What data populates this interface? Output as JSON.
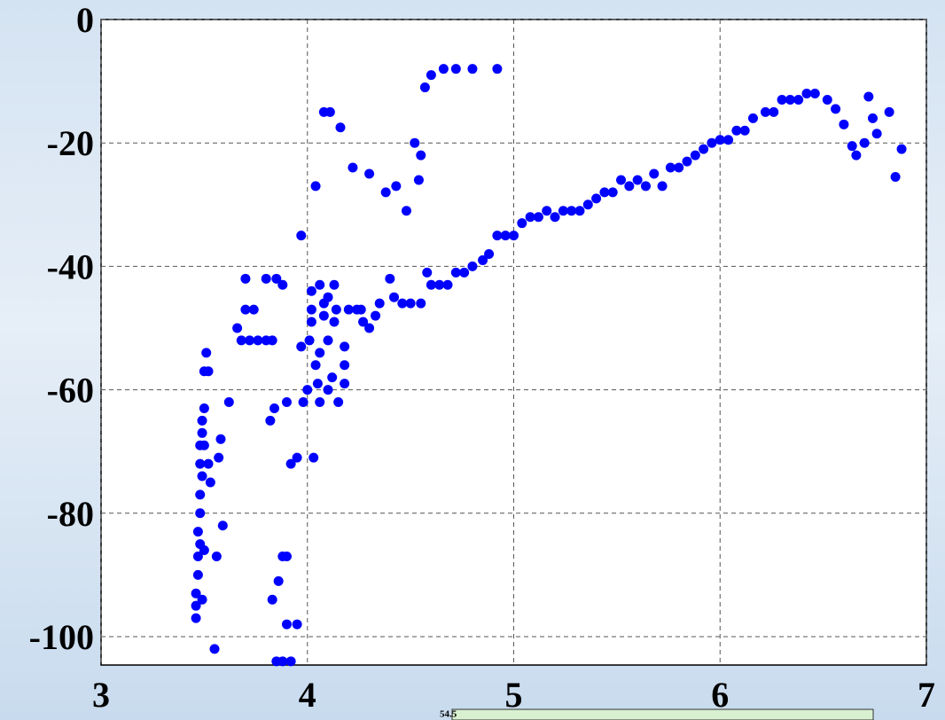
{
  "chart_data": {
    "type": "scatter",
    "color": "#0000ff",
    "grid": true,
    "xlim": [
      3,
      7
    ],
    "xticks": [
      3,
      4,
      5,
      6,
      7
    ],
    "ylim": [
      -104.6,
      0
    ],
    "yticks": [
      0,
      -20,
      -40,
      -60,
      -80,
      -100
    ],
    "annotation": "54.5",
    "x": [
      3.46,
      3.46,
      3.46,
      3.47,
      3.47,
      3.48,
      3.47,
      3.48,
      3.48,
      3.49,
      3.48,
      3.48,
      3.49,
      3.49,
      3.5,
      3.5,
      3.51,
      3.52,
      3.5,
      3.52,
      3.53,
      3.5,
      3.49,
      3.55,
      3.56,
      3.57,
      3.58,
      3.59,
      3.62,
      3.66,
      3.68,
      3.7,
      3.7,
      3.74,
      3.72,
      3.76,
      3.8,
      3.83,
      3.8,
      3.85,
      3.88,
      3.82,
      3.84,
      3.83,
      3.86,
      3.88,
      3.9,
      3.9,
      3.92,
      3.95,
      3.95,
      3.85,
      3.88,
      3.92,
      3.9,
      3.97,
      3.97,
      3.98,
      4.0,
      4.01,
      4.02,
      4.02,
      4.02,
      4.03,
      4.04,
      4.04,
      4.05,
      4.06,
      4.06,
      4.06,
      4.08,
      4.08,
      4.1,
      4.1,
      4.1,
      4.08,
      4.11,
      4.12,
      4.13,
      4.13,
      4.14,
      4.15,
      4.16,
      4.18,
      4.18,
      4.18,
      4.2,
      4.22,
      4.24,
      4.26,
      4.27,
      4.3,
      4.3,
      4.33,
      4.35,
      4.38,
      4.4,
      4.42,
      4.43,
      4.46,
      4.48,
      4.5,
      4.52,
      4.54,
      4.55,
      4.55,
      4.57,
      4.58,
      4.6,
      4.6,
      4.64,
      4.66,
      4.68,
      4.72,
      4.72,
      4.76,
      4.8,
      4.8,
      4.85,
      4.88,
      4.92,
      4.92,
      4.96,
      5.0,
      5.04,
      5.08,
      5.12,
      5.16,
      5.2,
      5.24,
      5.28,
      5.32,
      5.36,
      5.4,
      5.44,
      5.48,
      5.52,
      5.56,
      5.6,
      5.64,
      5.68,
      5.72,
      5.76,
      5.8,
      5.84,
      5.88,
      5.92,
      5.96,
      6.0,
      6.04,
      6.08,
      6.12,
      6.16,
      6.22,
      6.26,
      6.3,
      6.34,
      6.38,
      6.42,
      6.46,
      6.52,
      6.56,
      6.6,
      6.64,
      6.66,
      6.7,
      6.72,
      6.74,
      6.76,
      6.82,
      6.85,
      6.88
    ],
    "y": [
      -97,
      -95,
      -93,
      -90,
      -87,
      -85,
      -83,
      -80,
      -77,
      -74,
      -72,
      -69,
      -67,
      -65,
      -63,
      -57,
      -54,
      -57,
      -69,
      -72,
      -75,
      -86,
      -94,
      -102,
      -87,
      -71,
      -68,
      -82,
      -62,
      -50,
      -52,
      -47,
      -42,
      -47,
      -52,
      -52,
      -52,
      -52,
      -42,
      -42,
      -43,
      -65,
      -63,
      -94,
      -91,
      -87,
      -87,
      -98,
      -72,
      -71,
      -98,
      -104,
      -104,
      -104,
      -62,
      -35,
      -53,
      -62,
      -60,
      -52,
      -49,
      -47,
      -44,
      -71,
      -27,
      -56,
      -59,
      -54,
      -62,
      -43,
      -46,
      -48,
      -45,
      -52,
      -60,
      -15,
      -15,
      -58,
      -43,
      -49,
      -47,
      -62,
      -17.5,
      -59,
      -56,
      -53,
      -47,
      -24,
      -47,
      -47,
      -49,
      -25,
      -50,
      -48,
      -46,
      -28,
      -42,
      -45,
      -27,
      -46,
      -31,
      -46,
      -20,
      -26,
      -22,
      -46,
      -11,
      -41,
      -9,
      -43,
      -43,
      -8,
      -43,
      -8,
      -41,
      -41,
      -8,
      -40,
      -39,
      -38,
      -8,
      -35,
      -35,
      -35,
      -33,
      -32,
      -32,
      -31,
      -32,
      -31,
      -31,
      -31,
      -30,
      -29,
      -28,
      -28,
      -26,
      -27,
      -26,
      -27,
      -25,
      -27,
      -24,
      -24,
      -23,
      -22,
      -21,
      -20,
      -19.5,
      -19.5,
      -18,
      -18,
      -16,
      -15,
      -15,
      -13,
      -13,
      -13,
      -12,
      -12,
      -13,
      -14.5,
      -17,
      -20.5,
      -22,
      -20,
      -12.5,
      -16,
      -18.5,
      -15,
      -25.5,
      -21
    ]
  }
}
